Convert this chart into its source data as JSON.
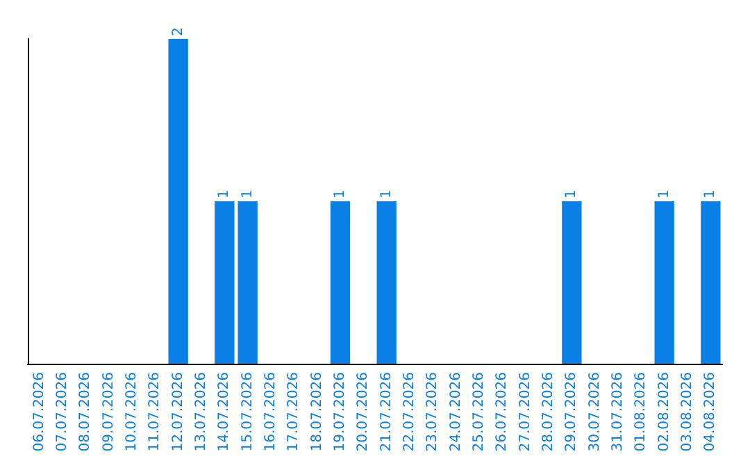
{
  "chart_data": {
    "type": "bar",
    "categories": [
      "06.07.2026",
      "07.07.2026",
      "08.07.2026",
      "09.07.2026",
      "10.07.2026",
      "11.07.2026",
      "12.07.2026",
      "13.07.2026",
      "14.07.2026",
      "15.07.2026",
      "16.07.2026",
      "17.07.2026",
      "18.07.2026",
      "19.07.2026",
      "20.07.2026",
      "21.07.2026",
      "22.07.2026",
      "23.07.2026",
      "24.07.2026",
      "25.07.2026",
      "26.07.2026",
      "27.07.2026",
      "28.07.2026",
      "29.07.2026",
      "30.07.2026",
      "31.07.2026",
      "01.08.2026",
      "02.08.2026",
      "03.08.2026",
      "04.08.2026"
    ],
    "values": [
      0,
      0,
      0,
      0,
      0,
      0,
      2,
      0,
      1,
      1,
      0,
      0,
      0,
      1,
      0,
      1,
      0,
      0,
      0,
      0,
      0,
      0,
      0,
      1,
      0,
      0,
      0,
      1,
      0,
      1
    ],
    "value_labels": [
      null,
      null,
      null,
      null,
      null,
      null,
      "2",
      null,
      "1",
      "1",
      null,
      null,
      null,
      "1",
      null,
      "1",
      null,
      null,
      null,
      null,
      null,
      null,
      null,
      "1",
      null,
      null,
      null,
      "1",
      null,
      "1"
    ],
    "color": "#0a7fe6",
    "grid": false
  }
}
